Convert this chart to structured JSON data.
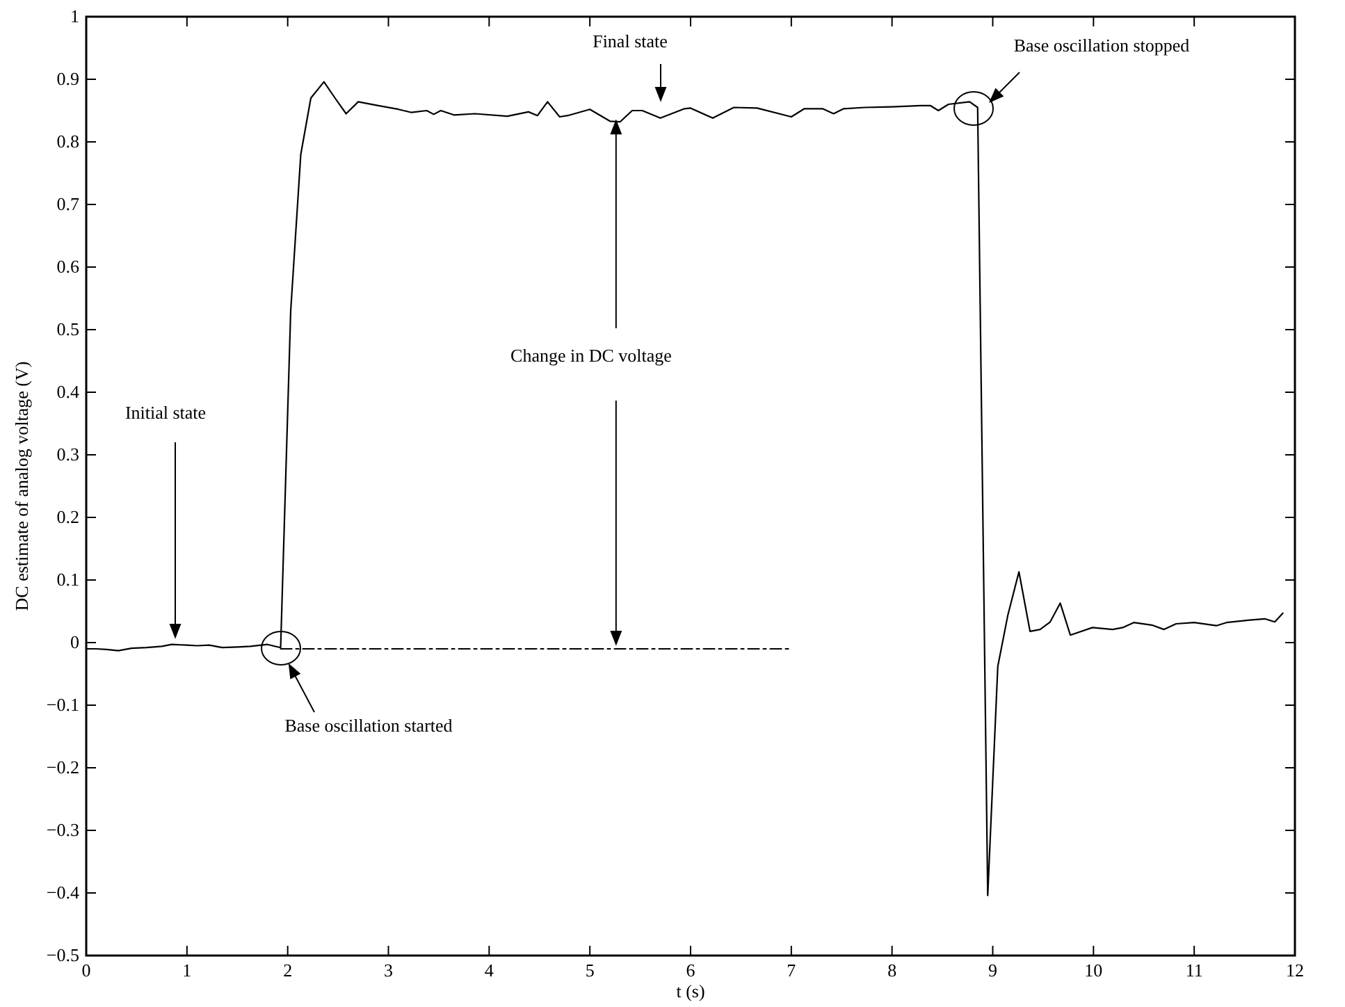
{
  "chart_data": {
    "type": "line",
    "xlabel": "t (s)",
    "ylabel": "DC estimate of analog voltage (V)",
    "xlim": [
      0,
      12
    ],
    "ylim": [
      -0.5,
      1
    ],
    "xticks": [
      0,
      1,
      2,
      3,
      4,
      5,
      6,
      7,
      8,
      9,
      10,
      11,
      12
    ],
    "yticks": [
      {
        "value": -0.5,
        "label": "−0.5"
      },
      {
        "value": -0.4,
        "label": "−0.4"
      },
      {
        "value": -0.3,
        "label": "−0.3"
      },
      {
        "value": -0.2,
        "label": "−0.2"
      },
      {
        "value": -0.1,
        "label": "−0.1"
      },
      0,
      0.1,
      0.2,
      0.3,
      0.4,
      0.5,
      0.6,
      0.7,
      0.8,
      0.9,
      1
    ],
    "grid": false,
    "marker": "none",
    "series": [
      {
        "color": "#000000",
        "line_style": "solid",
        "x": [
          0,
          0.1,
          0.2,
          0.32,
          0.45,
          0.6,
          0.75,
          0.85,
          1.0,
          1.1,
          1.22,
          1.35,
          1.5,
          1.63,
          1.8,
          1.93,
          2.03,
          2.13,
          2.23,
          2.36,
          2.47,
          2.58,
          2.7,
          2.9,
          3.1,
          3.23,
          3.38,
          3.45,
          3.52,
          3.65,
          3.86,
          4.18,
          4.39,
          4.48,
          4.58,
          4.7,
          4.78,
          5.0,
          5.2,
          5.3,
          5.42,
          5.52,
          5.7,
          5.94,
          6.0,
          6.22,
          6.43,
          6.66,
          7.0,
          7.13,
          7.31,
          7.42,
          7.52,
          7.73,
          8.0,
          8.28,
          8.38,
          8.46,
          8.56,
          8.77,
          8.85,
          8.95,
          9.05,
          9.15,
          9.26,
          9.37,
          9.47,
          9.57,
          9.67,
          9.77,
          9.99,
          10.19,
          10.29,
          10.4,
          10.58,
          10.7,
          10.82,
          11.0,
          11.22,
          11.32,
          11.55,
          11.7,
          11.8,
          11.88
        ],
        "values": [
          -0.01,
          -0.01,
          -0.011,
          -0.013,
          -0.009,
          -0.008,
          -0.006,
          -0.003,
          -0.004,
          -0.005,
          -0.004,
          -0.008,
          -0.007,
          -0.006,
          -0.003,
          -0.008,
          0.53,
          0.78,
          0.87,
          0.896,
          0.87,
          0.845,
          0.864,
          0.858,
          0.852,
          0.847,
          0.85,
          0.844,
          0.85,
          0.843,
          0.845,
          0.841,
          0.848,
          0.842,
          0.864,
          0.84,
          0.842,
          0.852,
          0.833,
          0.832,
          0.85,
          0.85,
          0.838,
          0.853,
          0.854,
          0.838,
          0.855,
          0.854,
          0.84,
          0.853,
          0.853,
          0.845,
          0.853,
          0.855,
          0.856,
          0.858,
          0.858,
          0.85,
          0.86,
          0.864,
          0.855,
          -0.404,
          -0.038,
          0.044,
          0.113,
          0.018,
          0.021,
          0.033,
          0.063,
          0.012,
          0.024,
          0.021,
          0.024,
          0.032,
          0.028,
          0.021,
          0.03,
          0.032,
          0.027,
          0.032,
          0.036,
          0.038,
          0.033,
          0.047
        ]
      },
      {
        "color": "#000000",
        "line_style": "dashed",
        "x": [
          1.93,
          7.0
        ],
        "values": [
          -0.01,
          -0.01
        ]
      }
    ],
    "annotations": [
      "Initial state",
      "Final state",
      "Base oscillation stopped",
      "Base oscillation started",
      {
        "text": "Change in DC voltage",
        "x": 5.26,
        "y": 0.833
      }
    ]
  }
}
